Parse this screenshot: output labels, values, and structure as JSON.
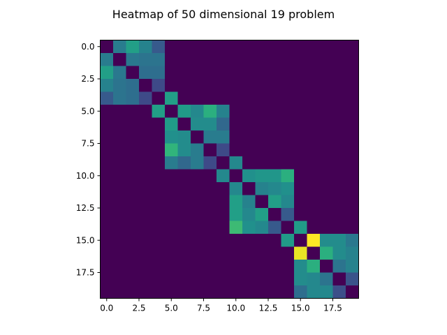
{
  "chart_data": {
    "type": "heatmap",
    "title": "Heatmap of 50 dimensional 19 problem",
    "xlabel": "",
    "ylabel": "",
    "rows": 20,
    "cols": 20,
    "xlim": [
      -0.5,
      19.5
    ],
    "ylim": [
      19.5,
      -0.5
    ],
    "x_ticks": [
      0.0,
      2.5,
      5.0,
      7.5,
      10.0,
      12.5,
      15.0,
      17.5
    ],
    "y_ticks": [
      0.0,
      2.5,
      5.0,
      7.5,
      10.0,
      12.5,
      15.0,
      17.5
    ],
    "x_tick_labels": [
      "0.0",
      "2.5",
      "5.0",
      "7.5",
      "10.0",
      "12.5",
      "15.0",
      "17.5"
    ],
    "y_tick_labels": [
      "0.0",
      "2.5",
      "5.0",
      "7.5",
      "10.0",
      "12.5",
      "15.0",
      "17.5"
    ],
    "colormap": "viridis",
    "vmin": 0,
    "vmax": 1,
    "grid": false,
    "values": [
      [
        0.0,
        0.52,
        0.7,
        0.55,
        0.35,
        0,
        0,
        0,
        0,
        0,
        0,
        0,
        0,
        0,
        0,
        0,
        0,
        0,
        0,
        0
      ],
      [
        0.52,
        0.0,
        0.5,
        0.48,
        0.48,
        0,
        0,
        0,
        0,
        0,
        0,
        0,
        0,
        0,
        0,
        0,
        0,
        0,
        0,
        0
      ],
      [
        0.7,
        0.5,
        0.0,
        0.45,
        0.45,
        0,
        0,
        0,
        0,
        0,
        0,
        0,
        0,
        0,
        0,
        0,
        0,
        0,
        0,
        0
      ],
      [
        0.55,
        0.48,
        0.45,
        0.0,
        0.28,
        0,
        0,
        0,
        0,
        0,
        0,
        0,
        0,
        0,
        0,
        0,
        0,
        0,
        0,
        0
      ],
      [
        0.35,
        0.48,
        0.45,
        0.28,
        0.0,
        0.7,
        0,
        0,
        0,
        0,
        0,
        0,
        0,
        0,
        0,
        0,
        0,
        0,
        0,
        0
      ],
      [
        0,
        0,
        0,
        0,
        0.7,
        0.0,
        0.68,
        0.58,
        0.78,
        0.55,
        0,
        0,
        0,
        0,
        0,
        0,
        0,
        0,
        0,
        0
      ],
      [
        0,
        0,
        0,
        0,
        0,
        0.68,
        0.0,
        0.6,
        0.6,
        0.42,
        0,
        0,
        0,
        0,
        0,
        0,
        0,
        0,
        0,
        0
      ],
      [
        0,
        0,
        0,
        0,
        0,
        0.62,
        0.6,
        0.0,
        0.52,
        0.52,
        0,
        0,
        0,
        0,
        0,
        0,
        0,
        0,
        0,
        0
      ],
      [
        0,
        0,
        0,
        0,
        0,
        0.8,
        0.6,
        0.52,
        0.0,
        0.28,
        0,
        0,
        0,
        0,
        0,
        0,
        0,
        0,
        0,
        0
      ],
      [
        0,
        0,
        0,
        0,
        0,
        0.52,
        0.42,
        0.52,
        0.28,
        0.0,
        0.58,
        0,
        0,
        0,
        0,
        0,
        0,
        0,
        0,
        0
      ],
      [
        0,
        0,
        0,
        0,
        0,
        0,
        0,
        0,
        0,
        0.58,
        0.0,
        0.62,
        0.65,
        0.65,
        0.78,
        0,
        0,
        0,
        0,
        0
      ],
      [
        0,
        0,
        0,
        0,
        0,
        0,
        0,
        0,
        0,
        0,
        0.58,
        0.0,
        0.55,
        0.58,
        0.62,
        0,
        0,
        0,
        0,
        0
      ],
      [
        0,
        0,
        0,
        0,
        0,
        0,
        0,
        0,
        0,
        0,
        0.7,
        0.55,
        0.0,
        0.7,
        0.58,
        0,
        0,
        0,
        0,
        0
      ],
      [
        0,
        0,
        0,
        0,
        0,
        0,
        0,
        0,
        0,
        0,
        0.7,
        0.58,
        0.7,
        0.0,
        0.35,
        0,
        0,
        0,
        0,
        0
      ],
      [
        0,
        0,
        0,
        0,
        0,
        0,
        0,
        0,
        0,
        0,
        0.82,
        0.62,
        0.58,
        0.35,
        0.0,
        0.68,
        0,
        0,
        0,
        0
      ],
      [
        0,
        0,
        0,
        0,
        0,
        0,
        0,
        0,
        0,
        0,
        0,
        0,
        0,
        0,
        0.68,
        0.0,
        1.0,
        0.6,
        0.6,
        0.5
      ],
      [
        0,
        0,
        0,
        0,
        0,
        0,
        0,
        0,
        0,
        0,
        0,
        0,
        0,
        0,
        0,
        0.98,
        0.0,
        0.78,
        0.6,
        0.55
      ],
      [
        0,
        0,
        0,
        0,
        0,
        0,
        0,
        0,
        0,
        0,
        0,
        0,
        0,
        0,
        0,
        0.6,
        0.78,
        0.0,
        0.48,
        0.55
      ],
      [
        0,
        0,
        0,
        0,
        0,
        0,
        0,
        0,
        0,
        0,
        0,
        0,
        0,
        0,
        0,
        0.6,
        0.58,
        0.48,
        0.0,
        0.32
      ],
      [
        0,
        0,
        0,
        0,
        0,
        0,
        0,
        0,
        0,
        0,
        0,
        0,
        0,
        0,
        0,
        0.45,
        0.58,
        0.58,
        0.3,
        0.0
      ]
    ]
  }
}
